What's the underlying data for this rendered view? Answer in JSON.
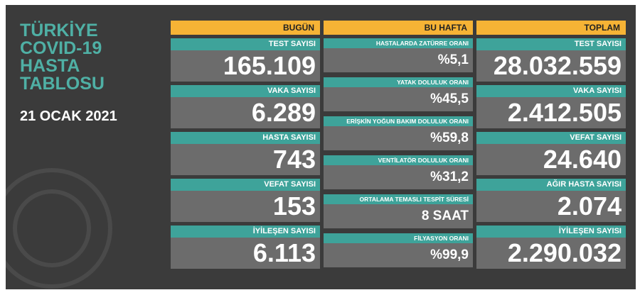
{
  "title_lines": [
    "TÜRKİYE",
    "COVID-19",
    "HASTA",
    "TABLOSU"
  ],
  "date": "21 OCAK 2021",
  "columns": [
    {
      "header": "BUGÜN",
      "items": [
        {
          "label": "TEST SAYISI",
          "value": "165.109"
        },
        {
          "label": "VAKA SAYISI",
          "value": "6.289"
        },
        {
          "label": "HASTA SAYISI",
          "value": "743"
        },
        {
          "label": "VEFAT SAYISI",
          "value": "153"
        },
        {
          "label": "İYİLEŞEN SAYISI",
          "value": "6.113"
        }
      ]
    },
    {
      "header": "BU HAFTA",
      "items": [
        {
          "label": "HASTALARDA ZATÜRRE ORANI",
          "value": "%5,1"
        },
        {
          "label": "YATAK DOLULUK ORANI",
          "value": "%45,5"
        },
        {
          "label": "ERİŞKİN YOĞUN BAKIM DOLULUK ORANI",
          "value": "%59,8"
        },
        {
          "label": "VENTİLATÖR DOLULUK ORANI",
          "value": "%31,2"
        },
        {
          "label": "ORTALAMA TEMASLI TESPİT SÜRESİ",
          "value": "8 SAAT"
        },
        {
          "label": "FİLYASYON ORANI",
          "value": "%99,9"
        }
      ]
    },
    {
      "header": "TOPLAM",
      "items": [
        {
          "label": "TEST SAYISI",
          "value": "28.032.559"
        },
        {
          "label": "VAKA SAYISI",
          "value": "2.412.505"
        },
        {
          "label": "VEFAT SAYISI",
          "value": "24.640"
        },
        {
          "label": "AĞIR HASTA SAYISI",
          "value": "2.074"
        },
        {
          "label": "İYİLEŞEN SAYISI",
          "value": "2.290.032"
        }
      ]
    }
  ]
}
